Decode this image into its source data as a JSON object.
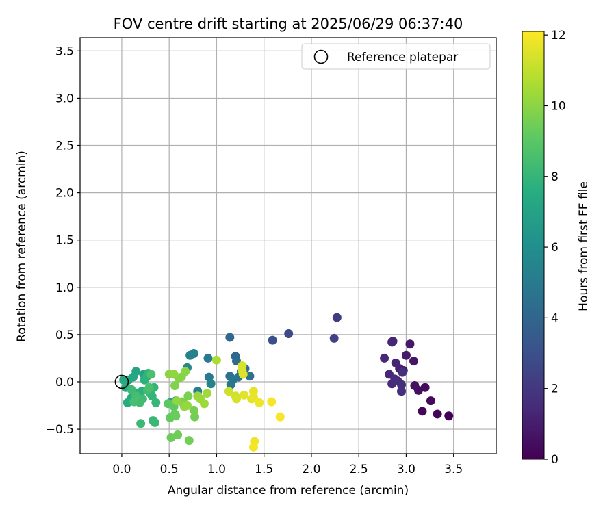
{
  "chart_data": {
    "type": "scatter",
    "title": "FOV centre drift starting at 2025/06/29 06:37:40",
    "xlabel": "Angular distance from reference (arcmin)",
    "ylabel": "Rotation from reference (arcmin)",
    "xlim": [
      -0.44,
      3.95
    ],
    "ylim": [
      -0.76,
      3.64
    ],
    "xticks": [
      "0.0",
      "0.5",
      "1.0",
      "1.5",
      "2.0",
      "2.5",
      "3.0",
      "3.5"
    ],
    "yticks": [
      "−0.5",
      "0.0",
      "0.5",
      "1.0",
      "1.5",
      "2.0",
      "2.5",
      "3.0",
      "3.5"
    ],
    "xtick_values": [
      0,
      0.5,
      1.0,
      1.5,
      2.0,
      2.5,
      3.0,
      3.5
    ],
    "ytick_values": [
      -0.5,
      0,
      0.5,
      1.0,
      1.5,
      2.0,
      2.5,
      3.0,
      3.5
    ],
    "grid": true,
    "colormap": "viridis",
    "legend": {
      "position": "top-right",
      "entries": [
        {
          "label": "Reference platepar",
          "marker": "open-circle"
        }
      ]
    },
    "reference_point": [
      0,
      0
    ],
    "colorbar": {
      "label": "Hours from first FF file",
      "range": [
        0,
        12.1
      ],
      "ticks": [
        "0",
        "2",
        "4",
        "6",
        "8",
        "10",
        "12"
      ],
      "tick_values": [
        0,
        2,
        4,
        6,
        8,
        10,
        12
      ]
    },
    "points": [
      {
        "x": 3.45,
        "y": -0.36,
        "c": 0.0
      },
      {
        "x": 3.33,
        "y": -0.34,
        "c": 0.1
      },
      {
        "x": 3.17,
        "y": -0.31,
        "c": 0.2
      },
      {
        "x": 3.26,
        "y": -0.2,
        "c": 0.3
      },
      {
        "x": 3.2,
        "y": -0.06,
        "c": 0.4
      },
      {
        "x": 3.13,
        "y": -0.09,
        "c": 0.5
      },
      {
        "x": 3.09,
        "y": -0.04,
        "c": 0.6
      },
      {
        "x": 3.08,
        "y": 0.22,
        "c": 0.7
      },
      {
        "x": 3.04,
        "y": 0.4,
        "c": 0.8
      },
      {
        "x": 3.0,
        "y": 0.28,
        "c": 0.9
      },
      {
        "x": 2.97,
        "y": 0.12,
        "c": 1.0
      },
      {
        "x": 2.93,
        "y": 0.14,
        "c": 1.1
      },
      {
        "x": 2.89,
        "y": 0.2,
        "c": 1.2
      },
      {
        "x": 2.86,
        "y": 0.43,
        "c": 1.25
      },
      {
        "x": 2.85,
        "y": 0.42,
        "c": 1.3
      },
      {
        "x": 2.82,
        "y": 0.08,
        "c": 1.35
      },
      {
        "x": 2.77,
        "y": 0.25,
        "c": 1.4
      },
      {
        "x": 2.85,
        "y": -0.02,
        "c": 1.45
      },
      {
        "x": 2.88,
        "y": 0.03,
        "c": 1.5
      },
      {
        "x": 2.91,
        "y": 0.01,
        "c": 1.55
      },
      {
        "x": 2.95,
        "y": -0.03,
        "c": 1.6
      },
      {
        "x": 2.95,
        "y": -0.1,
        "c": 1.65
      },
      {
        "x": 2.96,
        "y": 0.1,
        "c": 1.7
      },
      {
        "x": 2.27,
        "y": 0.68,
        "c": 2.2
      },
      {
        "x": 2.24,
        "y": 0.46,
        "c": 2.4
      },
      {
        "x": 1.76,
        "y": 0.51,
        "c": 2.7
      },
      {
        "x": 1.59,
        "y": 0.44,
        "c": 3.0
      },
      {
        "x": 1.14,
        "y": 0.47,
        "c": 4.0
      },
      {
        "x": 1.2,
        "y": 0.27,
        "c": 4.2
      },
      {
        "x": 1.21,
        "y": 0.22,
        "c": 4.3
      },
      {
        "x": 1.3,
        "y": 0.14,
        "c": 4.4
      },
      {
        "x": 1.26,
        "y": 0.11,
        "c": 4.5
      },
      {
        "x": 1.35,
        "y": 0.06,
        "c": 4.6
      },
      {
        "x": 1.23,
        "y": 0.05,
        "c": 4.7
      },
      {
        "x": 1.14,
        "y": 0.06,
        "c": 4.5
      },
      {
        "x": 1.17,
        "y": 0.02,
        "c": 4.8
      },
      {
        "x": 1.15,
        "y": -0.03,
        "c": 4.9
      },
      {
        "x": 0.92,
        "y": 0.05,
        "c": 5.0
      },
      {
        "x": 0.91,
        "y": 0.25,
        "c": 5.0
      },
      {
        "x": 0.76,
        "y": 0.3,
        "c": 5.2
      },
      {
        "x": 0.72,
        "y": 0.28,
        "c": 5.3
      },
      {
        "x": 0.69,
        "y": 0.15,
        "c": 5.6
      },
      {
        "x": 0.8,
        "y": -0.1,
        "c": 5.1
      },
      {
        "x": 0.94,
        "y": -0.02,
        "c": 5.4
      },
      {
        "x": 0.57,
        "y": -0.2,
        "c": 5.8
      },
      {
        "x": 0.51,
        "y": -0.22,
        "c": 6.3
      },
      {
        "x": 0.23,
        "y": 0.08,
        "c": 7.0
      },
      {
        "x": 0.15,
        "y": 0.11,
        "c": 7.1
      },
      {
        "x": 0.12,
        "y": 0.05,
        "c": 7.2
      },
      {
        "x": 0.07,
        "y": 0.02,
        "c": 7.3
      },
      {
        "x": 0.02,
        "y": 0.02,
        "c": 7.35
      },
      {
        "x": 0.04,
        "y": -0.06,
        "c": 7.4
      },
      {
        "x": 0.06,
        "y": -0.22,
        "c": 7.45
      },
      {
        "x": 0.1,
        "y": -0.17,
        "c": 7.5
      },
      {
        "x": 0.13,
        "y": -0.11,
        "c": 7.55
      },
      {
        "x": 0.16,
        "y": -0.2,
        "c": 7.6
      },
      {
        "x": 0.18,
        "y": -0.14,
        "c": 7.65
      },
      {
        "x": 0.21,
        "y": -0.1,
        "c": 7.7
      },
      {
        "x": 0.24,
        "y": 0.02,
        "c": 7.75
      },
      {
        "x": 0.26,
        "y": 0.05,
        "c": 7.8
      },
      {
        "x": 0.28,
        "y": 0.09,
        "c": 7.85
      },
      {
        "x": 0.3,
        "y": -0.12,
        "c": 7.9
      },
      {
        "x": 0.32,
        "y": -0.15,
        "c": 7.95
      },
      {
        "x": 0.34,
        "y": -0.06,
        "c": 8.0
      },
      {
        "x": 0.36,
        "y": -0.22,
        "c": 8.05
      },
      {
        "x": 0.33,
        "y": -0.41,
        "c": 8.1
      },
      {
        "x": 0.35,
        "y": -0.43,
        "c": 8.15
      },
      {
        "x": 0.2,
        "y": -0.44,
        "c": 8.2
      },
      {
        "x": 0.1,
        "y": -0.08,
        "c": 8.25
      },
      {
        "x": 0.22,
        "y": -0.18,
        "c": 8.3
      },
      {
        "x": 0.19,
        "y": -0.22,
        "c": 8.35
      },
      {
        "x": 0.27,
        "y": -0.09,
        "c": 8.4
      },
      {
        "x": 0.15,
        "y": -0.15,
        "c": 8.45
      },
      {
        "x": 0.13,
        "y": -0.21,
        "c": 8.5
      },
      {
        "x": 0.29,
        "y": -0.06,
        "c": 8.55
      },
      {
        "x": 0.31,
        "y": 0.08,
        "c": 8.6
      },
      {
        "x": 0.49,
        "y": -0.23,
        "c": 9.0
      },
      {
        "x": 0.55,
        "y": -0.26,
        "c": 9.1
      },
      {
        "x": 0.51,
        "y": -0.38,
        "c": 9.2
      },
      {
        "x": 0.56,
        "y": -0.34,
        "c": 9.3
      },
      {
        "x": 0.57,
        "y": -0.36,
        "c": 9.35
      },
      {
        "x": 0.52,
        "y": -0.59,
        "c": 9.4
      },
      {
        "x": 0.59,
        "y": -0.56,
        "c": 9.45
      },
      {
        "x": 0.71,
        "y": -0.62,
        "c": 9.5
      },
      {
        "x": 0.77,
        "y": -0.37,
        "c": 9.55
      },
      {
        "x": 0.76,
        "y": -0.3,
        "c": 9.6
      },
      {
        "x": 0.7,
        "y": -0.15,
        "c": 9.65
      },
      {
        "x": 0.67,
        "y": -0.24,
        "c": 9.7
      },
      {
        "x": 0.63,
        "y": -0.21,
        "c": 9.75
      },
      {
        "x": 0.56,
        "y": -0.04,
        "c": 9.8
      },
      {
        "x": 0.6,
        "y": 0.04,
        "c": 9.85
      },
      {
        "x": 0.63,
        "y": 0.05,
        "c": 9.9
      },
      {
        "x": 0.67,
        "y": 0.11,
        "c": 9.95
      },
      {
        "x": 0.5,
        "y": 0.08,
        "c": 10.0
      },
      {
        "x": 0.55,
        "y": 0.08,
        "c": 10.05
      },
      {
        "x": 0.58,
        "y": -0.2,
        "c": 10.1
      },
      {
        "x": 0.66,
        "y": -0.26,
        "c": 10.15
      },
      {
        "x": 0.69,
        "y": -0.25,
        "c": 10.2
      },
      {
        "x": 0.8,
        "y": -0.15,
        "c": 10.25
      },
      {
        "x": 0.83,
        "y": -0.18,
        "c": 10.3
      },
      {
        "x": 0.87,
        "y": -0.23,
        "c": 10.35
      },
      {
        "x": 0.9,
        "y": -0.12,
        "c": 10.4
      },
      {
        "x": 1.0,
        "y": 0.23,
        "c": 10.6
      },
      {
        "x": 1.13,
        "y": -0.1,
        "c": 11.2
      },
      {
        "x": 1.2,
        "y": -0.15,
        "c": 11.3
      },
      {
        "x": 1.21,
        "y": -0.18,
        "c": 11.35
      },
      {
        "x": 1.27,
        "y": 0.17,
        "c": 11.4
      },
      {
        "x": 1.27,
        "y": 0.12,
        "c": 11.45
      },
      {
        "x": 1.28,
        "y": 0.08,
        "c": 11.5
      },
      {
        "x": 1.29,
        "y": -0.14,
        "c": 11.55
      },
      {
        "x": 1.37,
        "y": -0.18,
        "c": 11.6
      },
      {
        "x": 1.39,
        "y": -0.1,
        "c": 11.7
      },
      {
        "x": 1.39,
        "y": -0.16,
        "c": 11.75
      },
      {
        "x": 1.45,
        "y": -0.22,
        "c": 11.8
      },
      {
        "x": 1.4,
        "y": -0.63,
        "c": 11.85
      },
      {
        "x": 1.39,
        "y": -0.69,
        "c": 11.9
      },
      {
        "x": 1.58,
        "y": -0.21,
        "c": 11.95
      },
      {
        "x": 1.67,
        "y": -0.37,
        "c": 12.0
      }
    ]
  }
}
